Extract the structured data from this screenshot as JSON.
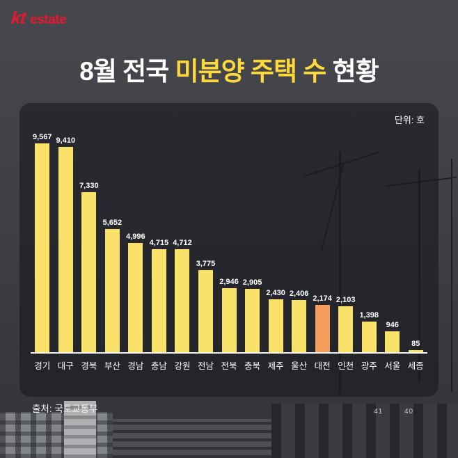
{
  "header": {
    "logo_kt": "kt",
    "logo_estate": "estate"
  },
  "title": {
    "prefix": "8월 전국 ",
    "highlight": "미분양 주택 수",
    "suffix": " 현황"
  },
  "chart": {
    "unit_label": "단위: 호"
  },
  "source_label": "출처: 국토교통부",
  "background": {
    "numbers": [
      "41",
      "40"
    ]
  },
  "colors": {
    "accent_yellow": "#ffd83c",
    "bar_yellow": "#f8e269",
    "bar_orange": "#f49d5c",
    "logo_red": "#e8192c"
  },
  "chart_data": {
    "type": "bar",
    "title": "8월 전국 미분양 주택 수 현황",
    "unit": "호",
    "categories": [
      "경기",
      "대구",
      "경북",
      "부산",
      "경남",
      "충남",
      "강원",
      "전남",
      "전북",
      "충북",
      "제주",
      "울산",
      "대전",
      "인천",
      "광주",
      "서울",
      "세종"
    ],
    "values": [
      9567,
      9410,
      7330,
      5652,
      4996,
      4715,
      4712,
      3775,
      2946,
      2905,
      2430,
      2406,
      2174,
      2103,
      1398,
      946,
      85
    ],
    "highlight_index": 12,
    "highlight_category": "대전",
    "bar_color": "#f8e269",
    "highlight_color": "#f49d5c",
    "value_label_color": "#ffffff",
    "xlabel": "",
    "ylabel": "",
    "ylim": [
      0,
      10000
    ],
    "grid": false,
    "legend_position": "none",
    "source": "출처: 국토교통부"
  }
}
